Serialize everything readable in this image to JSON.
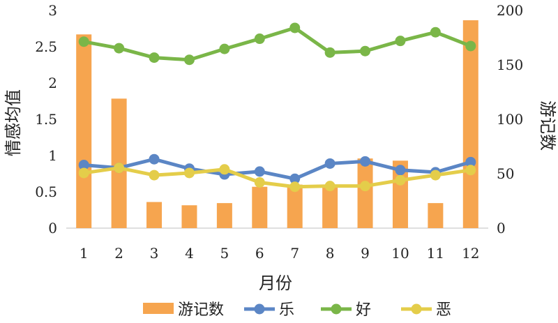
{
  "chart_data": {
    "type": "bar",
    "categories": [
      "1",
      "2",
      "3",
      "4",
      "5",
      "6",
      "7",
      "8",
      "9",
      "10",
      "11",
      "12"
    ],
    "xlabel": "月份",
    "ylabel": "情感均值",
    "y2label": "游记数",
    "ylim": [
      0,
      3
    ],
    "y2lim": [
      0,
      200
    ],
    "yticks": [
      "0",
      "0.5",
      "1",
      "1.5",
      "2",
      "2.5",
      "3"
    ],
    "y2ticks": [
      "0",
      "50",
      "100",
      "150",
      "200"
    ],
    "grid": false,
    "legend_position": "bottom",
    "series": [
      {
        "name": "游记数",
        "type": "bar",
        "axis": "right",
        "color": "#f6a54f",
        "values": [
          178,
          119,
          24,
          21,
          23,
          38,
          40,
          40,
          64,
          62,
          23,
          191
        ]
      },
      {
        "name": "乐",
        "type": "line",
        "axis": "left",
        "color": "#5b86c5",
        "values": [
          0.87,
          0.83,
          0.95,
          0.82,
          0.74,
          0.78,
          0.68,
          0.89,
          0.92,
          0.8,
          0.77,
          0.91
        ]
      },
      {
        "name": "好",
        "type": "line",
        "axis": "left",
        "color": "#7ab648",
        "values": [
          2.57,
          2.48,
          2.35,
          2.32,
          2.47,
          2.61,
          2.76,
          2.42,
          2.44,
          2.58,
          2.7,
          2.51
        ]
      },
      {
        "name": "恶",
        "type": "line",
        "axis": "left",
        "color": "#e4cd4a",
        "values": [
          0.76,
          0.83,
          0.73,
          0.76,
          0.81,
          0.63,
          0.57,
          0.58,
          0.58,
          0.66,
          0.73,
          0.8
        ]
      }
    ]
  }
}
